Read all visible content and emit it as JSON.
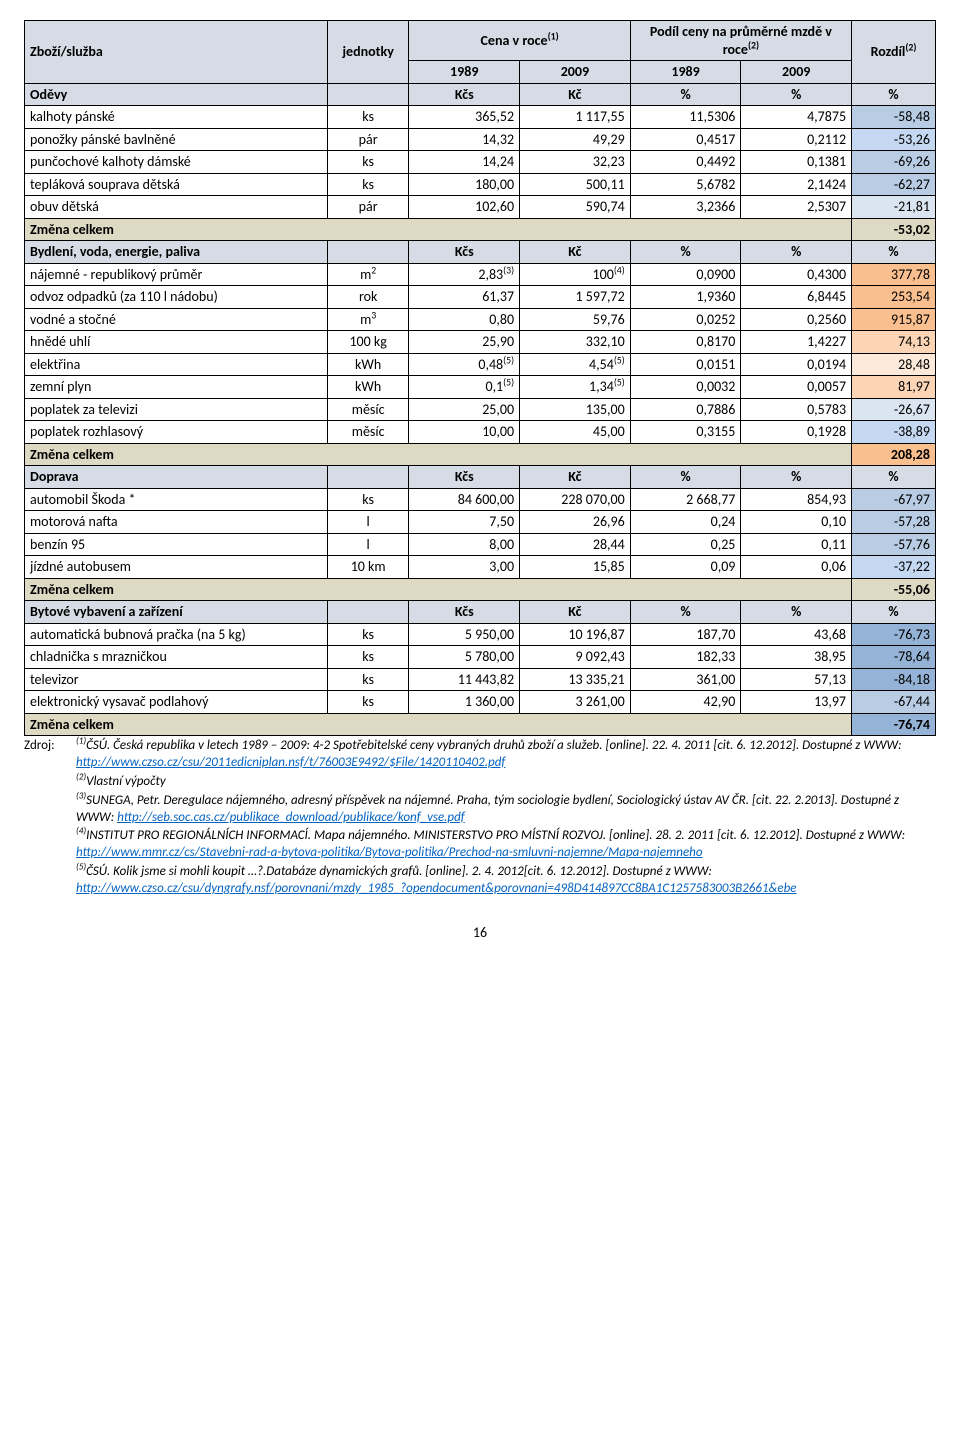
{
  "header": {
    "col1": "Zboží/služba",
    "col2": "jednotky",
    "col3": "Cena v roce",
    "col3_sup": "(1)",
    "col4": "Podíl ceny na průměrné mzdě v roce",
    "col4_sup": "(2)",
    "col5": "Rozdíl",
    "col5_sup": "(2)",
    "sub": [
      "1989",
      "2009",
      "1989",
      "2009"
    ]
  },
  "sections": [
    {
      "title": "Oděvy",
      "u1": "Kčs",
      "u2": "Kč",
      "u3": "%",
      "u4": "%",
      "u5": "%",
      "rows": [
        {
          "n": "kalhoty pánské",
          "u": "ks",
          "a": "365,52",
          "b": "1 117,55",
          "c": "11,5306",
          "d": "4,7875",
          "e": "-58,48",
          "cls": "bg-blue3"
        },
        {
          "n": "ponožky pánské bavlněné",
          "u": "pár",
          "a": "14,32",
          "b": "49,29",
          "c": "0,4517",
          "d": "0,2112",
          "e": "-53,26",
          "cls": "bg-blue2"
        },
        {
          "n": "punčochové kalhoty dámské",
          "u": "ks",
          "a": "14,24",
          "b": "32,23",
          "c": "0,4492",
          "d": "0,1381",
          "e": "-69,26",
          "cls": "bg-blue3"
        },
        {
          "n": "tepláková souprava dětská",
          "u": "ks",
          "a": "180,00",
          "b": "500,11",
          "c": "5,6782",
          "d": "2,1424",
          "e": "-62,27",
          "cls": "bg-blue3"
        },
        {
          "n": "obuv dětská",
          "u": "pár",
          "a": "102,60",
          "b": "590,74",
          "c": "3,2366",
          "d": "2,5307",
          "e": "-21,81",
          "cls": "bg-blue1"
        }
      ],
      "change": {
        "label": "Změna celkem",
        "val": "-53,02",
        "cls": ""
      }
    },
    {
      "title": "Bydlení, voda, energie, paliva",
      "u1": "Kčs",
      "u2": "Kč",
      "u3": "%",
      "u4": "%",
      "u5": "%",
      "rows": [
        {
          "n": "nájemné - republikový průměr",
          "u": "m",
          "usup": "2",
          "a": "2,83",
          "asup": "(3)",
          "b": "100",
          "bsup": "(4)",
          "c": "0,0900",
          "d": "0,4300",
          "e": "377,78",
          "cls": "bg-orange3"
        },
        {
          "n": "odvoz odpadků (za 110 l nádobu)",
          "u": "rok",
          "a": "61,37",
          "b": "1 597,72",
          "c": "1,9360",
          "d": "6,8445",
          "e": "253,54",
          "cls": "bg-orange3"
        },
        {
          "n": "vodné a stočné",
          "u": "m",
          "usup": "3",
          "a": "0,80",
          "b": "59,76",
          "c": "0,0252",
          "d": "0,2560",
          "e": "915,87",
          "cls": "bg-orange3"
        },
        {
          "n": "hnědé uhlí",
          "u": "100 kg",
          "a": "25,90",
          "b": "332,10",
          "c": "0,8170",
          "d": "1,4227",
          "e": "74,13",
          "cls": "bg-orange2"
        },
        {
          "n": "elektřina",
          "u": "kWh",
          "a": "0,48",
          "asup": "(5)",
          "b": "4,54",
          "bsup": "(5)",
          "c": "0,0151",
          "d": "0,0194",
          "e": "28,48",
          "cls": "bg-orange1"
        },
        {
          "n": "zemní plyn",
          "u": "kWh",
          "a": "0,1",
          "asup": "(5)",
          "b": "1,34",
          "bsup": "(5)",
          "c": "0,0032",
          "d": "0,0057",
          "e": "81,97",
          "cls": "bg-orange2"
        },
        {
          "n": "poplatek za televizi",
          "u": "měsíc",
          "a": "25,00",
          "b": "135,00",
          "c": "0,7886",
          "d": "0,5783",
          "e": "-26,67",
          "cls": "bg-blue1"
        },
        {
          "n": "poplatek rozhlasový",
          "u": "měsíc",
          "a": "10,00",
          "b": "45,00",
          "c": "0,3155",
          "d": "0,1928",
          "e": "-38,89",
          "cls": "bg-blue2"
        }
      ],
      "change": {
        "label": "Změna celkem",
        "val": "208,28",
        "cls": "bg-orange3"
      }
    },
    {
      "title": "Doprava",
      "u1": "Kčs",
      "u2": "Kč",
      "u3": "%",
      "u4": "%",
      "u5": "%",
      "rows": [
        {
          "n": "automobil Škoda *",
          "u": "ks",
          "a": "84 600,00",
          "b": "228 070,00",
          "c": "2 668,77",
          "d": "854,93",
          "e": "-67,97",
          "cls": "bg-blue3"
        },
        {
          "n": "motorová nafta",
          "u": "l",
          "a": "7,50",
          "b": "26,96",
          "c": "0,24",
          "d": "0,10",
          "e": "-57,28",
          "cls": "bg-blue3"
        },
        {
          "n": "benzín 95",
          "u": "l",
          "a": "8,00",
          "b": "28,44",
          "c": "0,25",
          "d": "0,11",
          "e": "-57,76",
          "cls": "bg-blue3"
        },
        {
          "n": "jízdné autobusem",
          "u": "10 km",
          "a": "3,00",
          "b": "15,85",
          "c": "0,09",
          "d": "0,06",
          "e": "-37,22",
          "cls": "bg-blue2"
        }
      ],
      "change": {
        "label": "Změna celkem",
        "val": "-55,06",
        "cls": ""
      }
    },
    {
      "title": "Bytové vybavení a zařízení",
      "u1": "Kčs",
      "u2": "Kč",
      "u3": "%",
      "u4": "%",
      "u5": "%",
      "rows": [
        {
          "n": "automatická bubnová pračka (na 5 kg)",
          "u": "ks",
          "a": "5 950,00",
          "b": "10 196,87",
          "c": "187,70",
          "d": "43,68",
          "e": "-76,73",
          "cls": "bg-blue4"
        },
        {
          "n": "chladnička s mrazničkou",
          "u": "ks",
          "a": "5 780,00",
          "b": "9 092,43",
          "c": "182,33",
          "d": "38,95",
          "e": "-78,64",
          "cls": "bg-blue4"
        },
        {
          "n": "televizor",
          "u": "ks",
          "a": "11 443,82",
          "b": "13 335,21",
          "c": "361,00",
          "d": "57,13",
          "e": "-84,18",
          "cls": "bg-blue4"
        },
        {
          "n": "elektronický vysavač podlahový",
          "u": "ks",
          "a": "1 360,00",
          "b": "3 261,00",
          "c": "42,90",
          "d": "13,97",
          "e": "-67,44",
          "cls": "bg-blue3"
        }
      ],
      "change": {
        "label": "Změna celkem",
        "val": "-76,74",
        "cls": "bg-blue4"
      }
    }
  ],
  "sources": {
    "label": "Zdroj:",
    "items": [
      {
        "pre": "(1)",
        "text": "ČSÚ. Česká republika v letech 1989 – 2009: 4-2 Spotřebitelské ceny vybraných druhů zboží a služeb. [online]. 22. 4. 2011 [cit. 6. 12.2012]. Dostupné z WWW:",
        "link": "http://www.czso.cz/csu/2011edicniplan.nsf/t/76003E9492/$File/1420110402.pdf"
      },
      {
        "pre": "(2)",
        "text": "Vlastní výpočty"
      },
      {
        "pre": "(3)",
        "text": "SUNEGA, Petr. Deregulace nájemného, adresný příspěvek na nájemné. Praha, tým sociologie bydlení, Sociologický ústav AV ČR. [cit. 22. 2.2013]. Dostupné z WWW:",
        "link": "http://seb.soc.cas.cz/publikace_download/publikace/konf_vse.pdf"
      },
      {
        "pre": "(4)",
        "text": "INSTITUT PRO REGIONÁLNÍCH INFORMACÍ. Mapa nájemného. MINISTERSTVO PRO MÍSTNÍ ROZVOJ. [online]. 28. 2. 2011 [cit. 6. 12.2012]. Dostupné z WWW: ",
        "link": "http://www.mmr.cz/cs/Stavebni-rad-a-bytova-politika/Bytova-politika/Prechod-na-smluvni-najemne/Mapa-najemneho"
      },
      {
        "pre": "(5)",
        "text": "ČSÚ. Kolik jsme si mohli koupit …?.Databáze dynamických grafů. [online]. 2. 4. 2012[cit. 6. 12.2012]. Dostupné z WWW:",
        "link": "http://www.czso.cz/csu/dyngrafy.nsf/porovnani/mzdy_1985_?opendocument&porovnani=498D414897CC8BA1C1257583003B2661&ebe"
      }
    ]
  },
  "pagenum": "16",
  "colors": {
    "header": "#d5dce5",
    "change": "#ddd9c3",
    "blue1": "#dbe5f1",
    "blue2": "#c5d8f1",
    "blue3": "#b8cce4",
    "blue4": "#94b3d6",
    "orange1": "#fde9d9",
    "orange2": "#fbd5b5",
    "orange3": "#fabf8f",
    "link": "#0563c1"
  }
}
